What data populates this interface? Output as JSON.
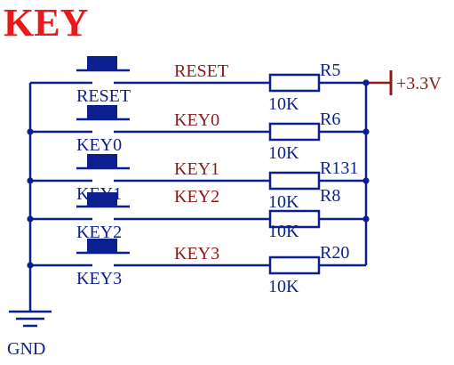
{
  "title": "KEY",
  "colors": {
    "wire": "#0b1f8f",
    "net_label": "#8b1a1a",
    "component_label": "#0b1f8f",
    "title": "#e8191b",
    "power_symbol": "#8b1a1a"
  },
  "power": {
    "label": "+3.3V"
  },
  "ground": {
    "label": "GND",
    "icon": "ground-icon"
  },
  "rows": [
    {
      "switch": "RESET",
      "net": "RESET",
      "resistor": "R5",
      "value": "10K"
    },
    {
      "switch": "KEY0",
      "net": "KEY0",
      "resistor": "R6",
      "value": "10K"
    },
    {
      "switch": "KEY1",
      "net": "KEY1",
      "resistor": "R131",
      "value": "10K"
    },
    {
      "switch": "KEY2",
      "net": "KEY2",
      "resistor": "R8",
      "value": "10K"
    },
    {
      "switch": "KEY3",
      "net": "KEY3",
      "resistor": "R20",
      "value": "10K"
    }
  ]
}
